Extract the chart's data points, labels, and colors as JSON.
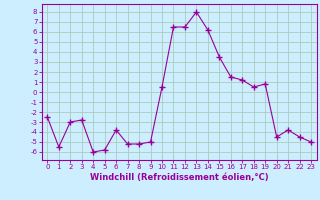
{
  "x": [
    0,
    1,
    2,
    3,
    4,
    5,
    6,
    7,
    8,
    9,
    10,
    11,
    12,
    13,
    14,
    15,
    16,
    17,
    18,
    19,
    20,
    21,
    22,
    23
  ],
  "y": [
    -2.5,
    -5.5,
    -3.0,
    -2.8,
    -6.0,
    -5.8,
    -3.8,
    -5.2,
    -5.2,
    -5.0,
    0.5,
    6.5,
    6.5,
    8.0,
    6.2,
    3.5,
    1.5,
    1.2,
    0.5,
    0.8,
    -4.5,
    -3.8,
    -4.5,
    -5.0
  ],
  "line_color": "#990099",
  "marker": "+",
  "marker_size": 4,
  "bg_color": "#cceeff",
  "grid_color": "#aaccbb",
  "xlabel": "Windchill (Refroidissement éolien,°C)",
  "ylim": [
    -6.8,
    8.8
  ],
  "xlim": [
    -0.5,
    23.5
  ],
  "yticks": [
    -6,
    -5,
    -4,
    -3,
    -2,
    -1,
    0,
    1,
    2,
    3,
    4,
    5,
    6,
    7,
    8
  ],
  "xticks": [
    0,
    1,
    2,
    3,
    4,
    5,
    6,
    7,
    8,
    9,
    10,
    11,
    12,
    13,
    14,
    15,
    16,
    17,
    18,
    19,
    20,
    21,
    22,
    23
  ],
  "tick_color": "#990099",
  "label_color": "#990099",
  "axis_color": "#990099",
  "tick_fontsize": 5,
  "xlabel_fontsize": 6
}
